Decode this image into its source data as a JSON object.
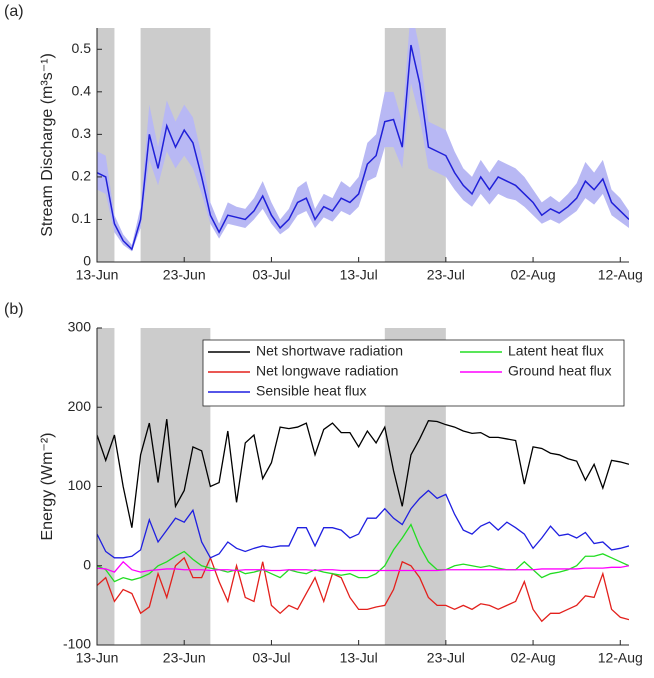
{
  "chart_data": [
    {
      "type": "band-line",
      "label": "(a)",
      "ylabel": "Stream Discharge (m³s⁻¹)",
      "x": [
        "13-Jun",
        "14-Jun",
        "15-Jun",
        "16-Jun",
        "17-Jun",
        "18-Jun",
        "19-Jun",
        "20-Jun",
        "21-Jun",
        "22-Jun",
        "23-Jun",
        "24-Jun",
        "25-Jun",
        "26-Jun",
        "27-Jun",
        "28-Jun",
        "29-Jun",
        "30-Jun",
        "01-Jul",
        "02-Jul",
        "03-Jul",
        "04-Jul",
        "05-Jul",
        "06-Jul",
        "07-Jul",
        "08-Jul",
        "09-Jul",
        "10-Jul",
        "11-Jul",
        "12-Jul",
        "13-Jul",
        "14-Jul",
        "15-Jul",
        "16-Jul",
        "17-Jul",
        "18-Jul",
        "19-Jul",
        "20-Jul",
        "21-Jul",
        "22-Jul",
        "23-Jul",
        "24-Jul",
        "25-Jul",
        "26-Jul",
        "27-Jul",
        "28-Jul",
        "29-Jul",
        "30-Jul",
        "31-Jul",
        "01-Aug",
        "02-Aug",
        "03-Aug",
        "04-Aug",
        "05-Aug",
        "06-Aug",
        "07-Aug",
        "08-Aug",
        "09-Aug",
        "10-Aug",
        "11-Aug",
        "12-Aug",
        "13-Aug"
      ],
      "values": [
        0.21,
        0.2,
        0.09,
        0.05,
        0.03,
        0.1,
        0.3,
        0.22,
        0.32,
        0.27,
        0.31,
        0.28,
        0.2,
        0.11,
        0.07,
        0.11,
        0.105,
        0.1,
        0.12,
        0.155,
        0.11,
        0.08,
        0.1,
        0.14,
        0.15,
        0.1,
        0.13,
        0.12,
        0.15,
        0.14,
        0.16,
        0.23,
        0.25,
        0.33,
        0.335,
        0.27,
        0.51,
        0.42,
        0.27,
        0.26,
        0.25,
        0.21,
        0.18,
        0.16,
        0.2,
        0.17,
        0.2,
        0.19,
        0.18,
        0.16,
        0.14,
        0.11,
        0.125,
        0.115,
        0.13,
        0.15,
        0.19,
        0.17,
        0.195,
        0.14,
        0.12,
        0.1
      ],
      "lower": [
        0.17,
        0.16,
        0.07,
        0.04,
        0.025,
        0.08,
        0.24,
        0.18,
        0.26,
        0.22,
        0.25,
        0.22,
        0.16,
        0.09,
        0.055,
        0.09,
        0.085,
        0.08,
        0.1,
        0.125,
        0.09,
        0.065,
        0.08,
        0.11,
        0.12,
        0.08,
        0.105,
        0.095,
        0.12,
        0.11,
        0.13,
        0.19,
        0.2,
        0.27,
        0.27,
        0.22,
        0.42,
        0.34,
        0.22,
        0.21,
        0.2,
        0.17,
        0.145,
        0.13,
        0.16,
        0.135,
        0.16,
        0.15,
        0.145,
        0.13,
        0.11,
        0.09,
        0.1,
        0.09,
        0.105,
        0.12,
        0.15,
        0.135,
        0.16,
        0.11,
        0.095,
        0.08
      ],
      "upper": [
        0.26,
        0.25,
        0.11,
        0.065,
        0.04,
        0.13,
        0.37,
        0.27,
        0.38,
        0.33,
        0.37,
        0.34,
        0.25,
        0.14,
        0.09,
        0.14,
        0.13,
        0.125,
        0.15,
        0.19,
        0.14,
        0.1,
        0.125,
        0.175,
        0.19,
        0.125,
        0.16,
        0.15,
        0.19,
        0.175,
        0.2,
        0.28,
        0.3,
        0.4,
        0.4,
        0.33,
        0.6,
        0.5,
        0.33,
        0.32,
        0.31,
        0.26,
        0.22,
        0.2,
        0.24,
        0.21,
        0.24,
        0.23,
        0.22,
        0.2,
        0.17,
        0.14,
        0.155,
        0.14,
        0.16,
        0.185,
        0.235,
        0.21,
        0.24,
        0.17,
        0.15,
        0.12
      ],
      "color": "#2020d8",
      "band_color": "#b8b8f4",
      "shaded_periods": [
        [
          "13-Jun",
          "15-Jun"
        ],
        [
          "18-Jun",
          "26-Jun"
        ],
        [
          "16-Jul",
          "23-Jul"
        ]
      ],
      "shade_color": "#cccccc",
      "xlim": [
        "13-Jun",
        "13-Aug"
      ],
      "xticks": [
        "13-Jun",
        "23-Jun",
        "03-Jul",
        "13-Jul",
        "23-Jul",
        "02-Aug",
        "12-Aug"
      ],
      "ylim": [
        0,
        0.55
      ],
      "yticks": [
        0,
        0.1,
        0.2,
        0.3,
        0.4,
        0.5
      ]
    },
    {
      "type": "line",
      "label": "(b)",
      "ylabel": "Energy (Wm⁻²)",
      "x": [
        "13-Jun",
        "14-Jun",
        "15-Jun",
        "16-Jun",
        "17-Jun",
        "18-Jun",
        "19-Jun",
        "20-Jun",
        "21-Jun",
        "22-Jun",
        "23-Jun",
        "24-Jun",
        "25-Jun",
        "26-Jun",
        "27-Jun",
        "28-Jun",
        "29-Jun",
        "30-Jun",
        "01-Jul",
        "02-Jul",
        "03-Jul",
        "04-Jul",
        "05-Jul",
        "06-Jul",
        "07-Jul",
        "08-Jul",
        "09-Jul",
        "10-Jul",
        "11-Jul",
        "12-Jul",
        "13-Jul",
        "14-Jul",
        "15-Jul",
        "16-Jul",
        "17-Jul",
        "18-Jul",
        "19-Jul",
        "20-Jul",
        "21-Jul",
        "22-Jul",
        "23-Jul",
        "24-Jul",
        "25-Jul",
        "26-Jul",
        "27-Jul",
        "28-Jul",
        "29-Jul",
        "30-Jul",
        "31-Jul",
        "01-Aug",
        "02-Aug",
        "03-Aug",
        "04-Aug",
        "05-Aug",
        "06-Aug",
        "07-Aug",
        "08-Aug",
        "09-Aug",
        "10-Aug",
        "11-Aug",
        "12-Aug",
        "13-Aug"
      ],
      "series": [
        {
          "name": "Net shortwave radiation",
          "color": "#000000",
          "values": [
            165,
            133,
            165,
            100,
            48,
            140,
            180,
            105,
            185,
            75,
            95,
            150,
            145,
            100,
            105,
            170,
            80,
            155,
            165,
            110,
            130,
            175,
            173,
            175,
            180,
            140,
            172,
            180,
            168,
            168,
            150,
            170,
            155,
            175,
            120,
            75,
            140,
            160,
            183,
            182,
            178,
            175,
            170,
            167,
            168,
            162,
            162,
            160,
            158,
            103,
            150,
            148,
            142,
            140,
            135,
            132,
            108,
            128,
            98,
            133,
            131,
            128
          ]
        },
        {
          "name": "Net longwave radiation",
          "color": "#e3201c",
          "values": [
            -25,
            -15,
            -45,
            -30,
            -35,
            -60,
            -52,
            -10,
            -40,
            0,
            10,
            -15,
            -15,
            10,
            -20,
            -45,
            0,
            -40,
            -45,
            5,
            -50,
            -60,
            -50,
            -55,
            -35,
            -15,
            -45,
            -10,
            -15,
            -40,
            -55,
            -55,
            -52,
            -50,
            -30,
            5,
            0,
            -15,
            -40,
            -50,
            -50,
            -55,
            -50,
            -55,
            -48,
            -50,
            -55,
            -50,
            -45,
            -20,
            -55,
            -70,
            -60,
            -60,
            -55,
            -50,
            -38,
            -40,
            -10,
            -55,
            -65,
            -68
          ]
        },
        {
          "name": "Sensible heat flux",
          "color": "#1f1fe0",
          "values": [
            40,
            18,
            10,
            10,
            12,
            20,
            58,
            30,
            45,
            60,
            55,
            70,
            30,
            10,
            15,
            30,
            22,
            18,
            22,
            25,
            23,
            25,
            25,
            48,
            48,
            25,
            48,
            48,
            45,
            35,
            40,
            60,
            60,
            72,
            60,
            52,
            72,
            85,
            95,
            85,
            90,
            65,
            45,
            40,
            50,
            55,
            45,
            55,
            48,
            40,
            22,
            35,
            50,
            38,
            40,
            35,
            42,
            28,
            30,
            20,
            22,
            25
          ]
        },
        {
          "name": "Latent heat flux",
          "color": "#22dd22",
          "values": [
            0,
            -5,
            -20,
            -15,
            -18,
            -15,
            -10,
            0,
            5,
            12,
            18,
            8,
            0,
            -3,
            -5,
            -8,
            -5,
            -10,
            -8,
            -5,
            -10,
            -15,
            -5,
            -8,
            -10,
            -5,
            -8,
            -10,
            -12,
            -10,
            -15,
            -15,
            -10,
            0,
            20,
            35,
            52,
            25,
            5,
            -5,
            -5,
            0,
            2,
            0,
            -2,
            0,
            -3,
            -5,
            -5,
            5,
            -5,
            -15,
            -10,
            -8,
            -5,
            0,
            12,
            12,
            15,
            10,
            5,
            0
          ]
        },
        {
          "name": "Ground heat flux",
          "color": "#ff00ff",
          "values": [
            -3,
            -4,
            -8,
            5,
            -5,
            -8,
            -6,
            -5,
            -4,
            -4,
            -5,
            -5,
            -5,
            -6,
            -5,
            -5,
            -6,
            -5,
            -5,
            -5,
            -6,
            -6,
            -5,
            -5,
            -5,
            -6,
            -5,
            -5,
            -6,
            -6,
            -6,
            -6,
            -6,
            -6,
            -6,
            -6,
            -6,
            -6,
            -6,
            -6,
            -5,
            -5,
            -5,
            -5,
            -5,
            -5,
            -5,
            -5,
            -5,
            -5,
            -5,
            -4,
            -4,
            -4,
            -4,
            -4,
            -3,
            -3,
            -3,
            -2,
            -2,
            0
          ]
        }
      ],
      "shaded_periods": [
        [
          "13-Jun",
          "15-Jun"
        ],
        [
          "18-Jun",
          "26-Jun"
        ],
        [
          "16-Jul",
          "23-Jul"
        ]
      ],
      "shade_color": "#cccccc",
      "xlim": [
        "13-Jun",
        "13-Aug"
      ],
      "xticks": [
        "13-Jun",
        "23-Jun",
        "03-Jul",
        "13-Jul",
        "23-Jul",
        "02-Aug",
        "12-Aug"
      ],
      "ylim": [
        -100,
        300
      ],
      "yticks": [
        -100,
        0,
        100,
        200,
        300
      ],
      "legend": "upper right"
    }
  ]
}
